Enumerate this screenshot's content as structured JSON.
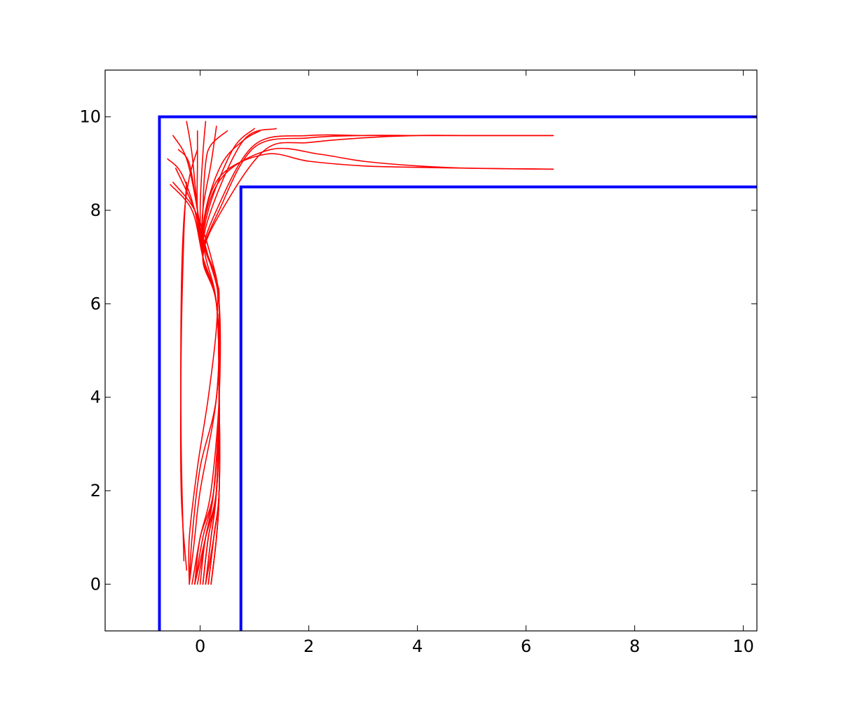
{
  "chart_data": {
    "type": "line",
    "title": "",
    "xlabel": "",
    "ylabel": "",
    "xlim": [
      -1.75,
      10.25
    ],
    "ylim": [
      -1,
      11
    ],
    "grid": false,
    "legend": "none",
    "x_ticks": [
      {
        "value": 0,
        "label": "0"
      },
      {
        "value": 2,
        "label": "2"
      },
      {
        "value": 4,
        "label": "4"
      },
      {
        "value": 6,
        "label": "6"
      },
      {
        "value": 8,
        "label": "8"
      },
      {
        "value": 10,
        "label": "10"
      }
    ],
    "y_ticks": [
      {
        "value": 0,
        "label": "0"
      },
      {
        "value": 2,
        "label": "2"
      },
      {
        "value": 4,
        "label": "4"
      },
      {
        "value": 6,
        "label": "6"
      },
      {
        "value": 8,
        "label": "8"
      },
      {
        "value": 10,
        "label": "10"
      }
    ],
    "walls": {
      "color": "#0000ff",
      "segments": [
        {
          "x": [
            -0.75,
            -0.75,
            10.25
          ],
          "y": [
            -1,
            10,
            10
          ]
        },
        {
          "x": [
            0.75,
            0.75,
            10.25
          ],
          "y": [
            -1,
            8.5,
            8.5
          ]
        }
      ]
    },
    "trajectories": {
      "color": "#ff0000",
      "series": [
        {
          "x": [
            -0.2,
            -0.1,
            0.0,
            0.3,
            0.35,
            0.2,
            -0.1,
            -0.5
          ],
          "y": [
            0,
            1,
            2,
            4,
            6,
            7,
            8,
            8.6
          ]
        },
        {
          "x": [
            -0.15,
            0.0,
            0.2,
            0.35,
            0.35,
            0.15,
            -0.1,
            -0.45
          ],
          "y": [
            0,
            1,
            2,
            4,
            6,
            7,
            8,
            8.9
          ]
        },
        {
          "x": [
            -0.1,
            0.05,
            0.25,
            0.35,
            0.3,
            0.1,
            -0.05,
            -0.2,
            -0.4
          ],
          "y": [
            0,
            1,
            2,
            4,
            6,
            7,
            8,
            9.0,
            9.3
          ]
        },
        {
          "x": [
            -0.05,
            0.1,
            0.25,
            0.35,
            0.3,
            0.05,
            -0.05,
            -0.15,
            -0.25
          ],
          "y": [
            0,
            1,
            2,
            4,
            6,
            7,
            8,
            9.2,
            9.9
          ]
        },
        {
          "x": [
            0.0,
            0.1,
            0.3,
            0.35,
            0.3,
            0.05,
            -0.05,
            -0.05,
            -0.05
          ],
          "y": [
            0,
            1,
            2,
            4,
            6,
            7,
            8,
            9.0,
            9.7
          ]
        },
        {
          "x": [
            0.05,
            0.15,
            0.3,
            0.35,
            0.3,
            0.05,
            0.0,
            0.05,
            0.1
          ],
          "y": [
            0,
            1,
            2,
            4,
            6,
            7,
            8,
            9.2,
            9.9
          ]
        },
        {
          "x": [
            0.1,
            0.2,
            0.3,
            0.35,
            0.3,
            0.05,
            0.05,
            0.2,
            0.3
          ],
          "y": [
            0,
            1,
            2,
            4,
            6,
            7,
            8,
            9.0,
            9.8
          ]
        },
        {
          "x": [
            0.15,
            0.25,
            0.35,
            0.35,
            0.3,
            0.05,
            0.1,
            0.4,
            0.8,
            1.1
          ],
          "y": [
            0,
            1,
            2,
            4,
            6,
            7,
            8,
            9.0,
            9.5,
            9.7
          ]
        },
        {
          "x": [
            0.2,
            0.3,
            0.35,
            0.35,
            0.3,
            0.05,
            0.2,
            0.8,
            1.4
          ],
          "y": [
            0,
            1,
            2,
            4,
            6,
            7,
            8,
            9.5,
            9.75
          ]
        },
        {
          "x": [
            0.2,
            0.3,
            0.35,
            0.35,
            0.3,
            0.05,
            0.3,
            1.0,
            2.0,
            3.0,
            4.0,
            5.0,
            6.5
          ],
          "y": [
            0,
            1,
            2,
            4,
            6,
            7,
            8,
            9.4,
            9.6,
            9.6,
            9.6,
            9.6,
            9.6
          ]
        },
        {
          "x": [
            0.1,
            0.25,
            0.35,
            0.35,
            0.3,
            0.05,
            0.35,
            1.0,
            2.0,
            3.0,
            4.0,
            5.0,
            6.5
          ],
          "y": [
            0,
            1,
            2,
            4,
            6,
            7,
            8,
            9.35,
            9.55,
            9.6,
            9.6,
            9.6,
            9.6
          ]
        },
        {
          "x": [
            -0.1,
            0.1,
            0.3,
            0.35,
            0.3,
            0.05,
            0.4,
            1.2,
            2.0,
            3.0,
            4.0,
            5.0,
            6.5
          ],
          "y": [
            0,
            1,
            2,
            4,
            6,
            7,
            8,
            9.3,
            9.45,
            9.55,
            9.6,
            9.6,
            9.6
          ]
        },
        {
          "x": [
            -0.2,
            -0.15,
            0.0,
            0.3,
            0.35,
            0.3,
            0.05,
            0.4,
            1.3,
            2.2,
            3.0,
            4.0,
            5.0,
            6.5
          ],
          "y": [
            0,
            1,
            2.5,
            4,
            6,
            6.5,
            7.5,
            8.7,
            9.3,
            9.2,
            9.05,
            8.95,
            8.9,
            8.88
          ]
        },
        {
          "x": [
            -0.2,
            -0.2,
            -0.05,
            0.15,
            0.3,
            0.3,
            0.05,
            0.35,
            1.2,
            2.0,
            3.0,
            4.0,
            5.0,
            6.5
          ],
          "y": [
            0,
            1,
            2.5,
            4,
            5.5,
            6.5,
            7.5,
            8.7,
            9.2,
            9.05,
            8.95,
            8.92,
            8.9,
            8.88
          ]
        },
        {
          "x": [
            -0.25,
            -0.35,
            -0.35,
            -0.3,
            -0.25
          ],
          "y": [
            0.3,
            2.0,
            5.0,
            7.5,
            8.6
          ]
        },
        {
          "x": [
            -0.3,
            -0.35,
            -0.35,
            -0.3,
            -0.2,
            -0.05
          ],
          "y": [
            0.5,
            3.0,
            6.0,
            7.8,
            8.7,
            9.3
          ]
        },
        {
          "x": [
            -0.1,
            0.0,
            0.25,
            0.35,
            0.3,
            0.05,
            -0.15,
            -0.55
          ],
          "y": [
            0,
            1,
            2,
            4,
            6,
            7,
            8,
            8.55
          ]
        },
        {
          "x": [
            0.05,
            0.15,
            0.3,
            0.35,
            0.3,
            0.05,
            -0.1,
            -0.35,
            -0.6
          ],
          "y": [
            0,
            1,
            2,
            4,
            6,
            7,
            8,
            8.8,
            9.1
          ]
        },
        {
          "x": [
            0.15,
            0.25,
            0.35,
            0.35,
            0.3,
            0.05,
            -0.05,
            -0.25,
            -0.5
          ],
          "y": [
            0,
            1,
            2,
            4,
            6,
            7,
            8,
            9.1,
            9.6
          ]
        },
        {
          "x": [
            0.2,
            0.3,
            0.35,
            0.35,
            0.3,
            0.05,
            0.05,
            0.1,
            0.2,
            0.5
          ],
          "y": [
            0,
            1,
            2,
            4,
            6,
            7,
            8,
            9.0,
            9.4,
            9.7
          ]
        },
        {
          "x": [
            0.1,
            0.2,
            0.3,
            0.35,
            0.3,
            0.05,
            0.15,
            0.6,
            1.0
          ],
          "y": [
            0,
            1,
            2,
            4,
            6,
            7,
            8,
            9.3,
            9.75
          ]
        }
      ]
    }
  }
}
